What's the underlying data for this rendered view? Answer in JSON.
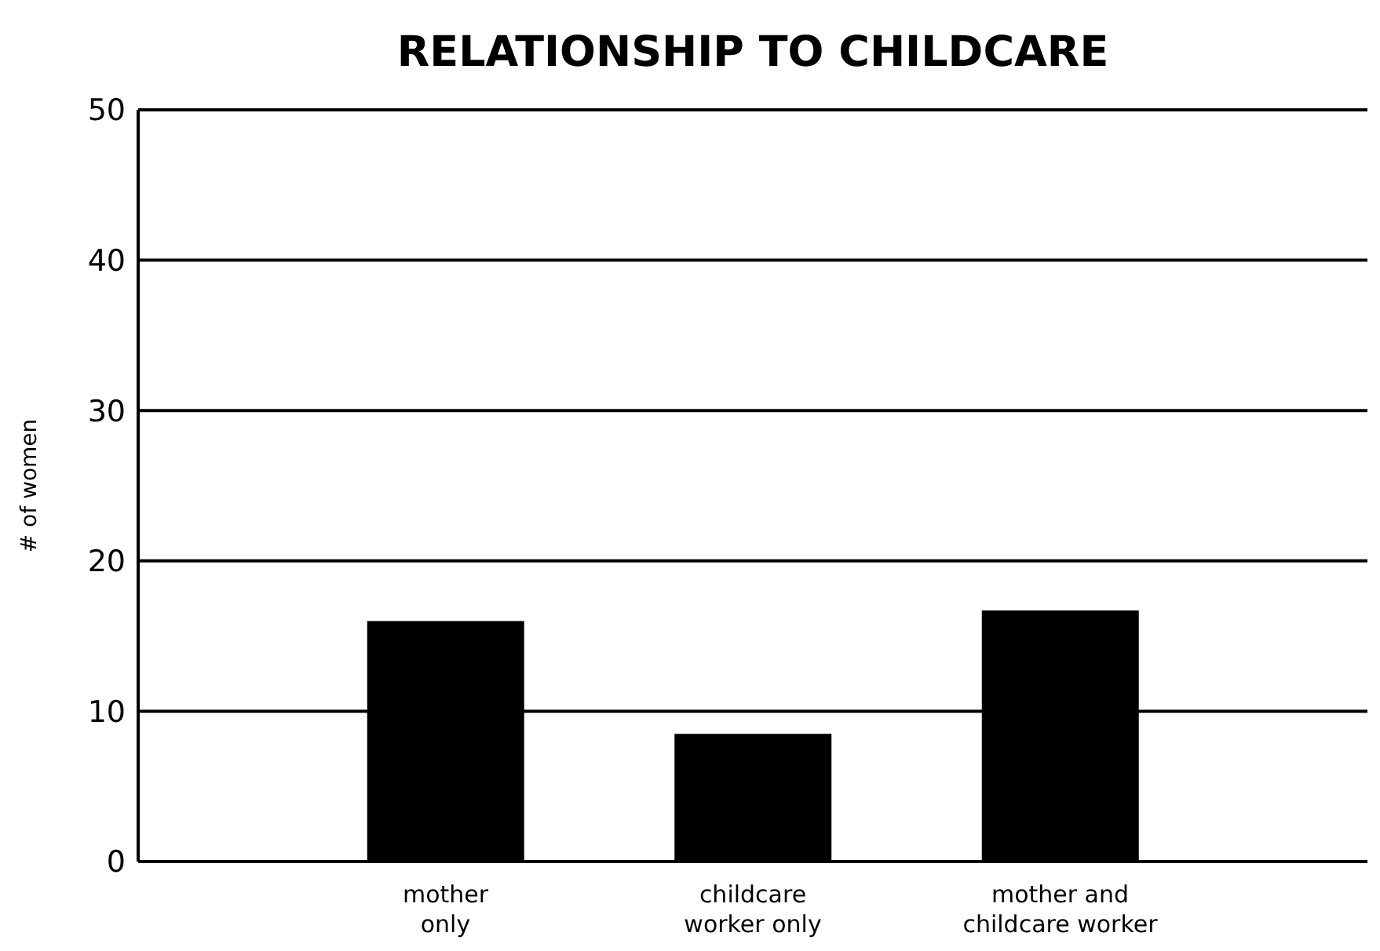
{
  "chart_data": {
    "type": "bar",
    "title": "RELATIONSHIP TO CHILDCARE",
    "ylabel": "# of women",
    "categories": [
      "mother\nonly",
      "childcare\nworker only",
      "mother and\nchildcare worker"
    ],
    "values": [
      16,
      8.5,
      16.7
    ],
    "color": "#000000",
    "ylim": [
      0,
      50
    ],
    "yticks": [
      0,
      10,
      20,
      30,
      40,
      50
    ],
    "grid": "y"
  }
}
